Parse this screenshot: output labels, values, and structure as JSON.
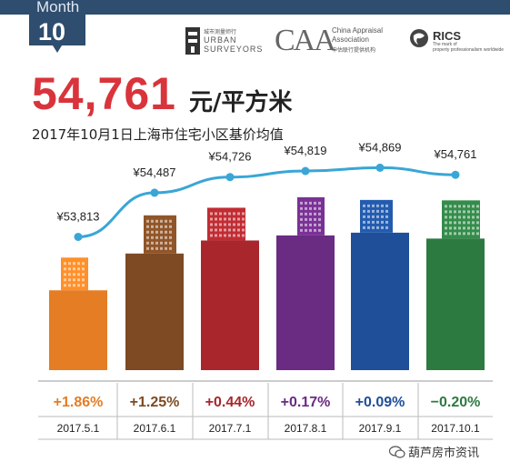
{
  "header": {
    "month_label": "Month",
    "month_number": "10"
  },
  "logos": {
    "urban_surveyors": {
      "cn": "城市测量师行",
      "en1": "URBAN",
      "en2": "SURVEYORS"
    },
    "caa": {
      "mark": "CAA",
      "line1": "China Appraisal",
      "line2": "Association",
      "line3": "中估联行提供机构"
    },
    "rics": {
      "mark": "RICS",
      "line1": "The mark of",
      "line2": "property professionalism worldwide"
    }
  },
  "headline": {
    "price": "54,761",
    "unit": "元/平方米",
    "subtitle": "2017年10月1日上海市住宅小区基价均值"
  },
  "watermark": "葫芦房市资讯",
  "colors": {
    "accent_red": "#d9343b",
    "line_blue": "#39a6d6",
    "header_navy": "#2f4d6e"
  },
  "chart_data": {
    "type": "bar",
    "categories": [
      "2017.5.1",
      "2017.6.1",
      "2017.7.1",
      "2017.8.1",
      "2017.9.1",
      "2017.10.1"
    ],
    "values": [
      53813,
      54487,
      54726,
      54819,
      54869,
      54761
    ],
    "value_labels": [
      "¥53,813",
      "¥54,487",
      "¥54,726",
      "¥54,819",
      "¥54,869",
      "¥54,761"
    ],
    "changes": [
      "+1.86%",
      "+1.25%",
      "+0.44%",
      "+0.17%",
      "+0.09%",
      "−0.20%"
    ],
    "bar_colors": [
      "#e47d24",
      "#7d4a23",
      "#a8262c",
      "#6a2b82",
      "#1e4f98",
      "#2d7a41"
    ],
    "line_color": "#39a6d6",
    "ylim": [
      53500,
      55000
    ]
  }
}
